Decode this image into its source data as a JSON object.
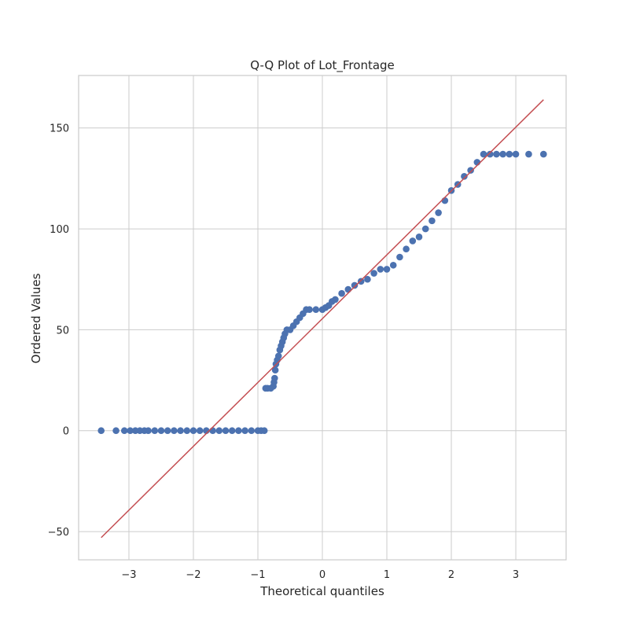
{
  "chart_data": {
    "type": "scatter",
    "title": "Q-Q Plot of Lot_Frontage",
    "xlabel": "Theoretical quantiles",
    "ylabel": "Ordered Values",
    "xlim": [
      -3.78,
      3.78
    ],
    "ylim": [
      -64,
      176
    ],
    "xticks": [
      -3,
      -2,
      -1,
      0,
      1,
      2,
      3
    ],
    "yticks": [
      -50,
      0,
      50,
      100,
      150
    ],
    "xtick_labels": [
      "−3",
      "−2",
      "−1",
      "0",
      "1",
      "2",
      "3"
    ],
    "ytick_labels": [
      "−50",
      "0",
      "50",
      "100",
      "150"
    ],
    "grid": true,
    "colors": {
      "points": "#4c72b0",
      "line": "#c44e52",
      "grid": "#cccccc",
      "frame": "#cccccc"
    },
    "series": [
      {
        "type": "scatter",
        "points": [
          [
            -3.43,
            0
          ],
          [
            -3.2,
            0
          ],
          [
            -3.07,
            0
          ],
          [
            -2.98,
            0
          ],
          [
            -2.9,
            0
          ],
          [
            -2.83,
            0
          ],
          [
            -2.76,
            0
          ],
          [
            -2.7,
            0
          ],
          [
            -2.6,
            0
          ],
          [
            -2.5,
            0
          ],
          [
            -2.4,
            0
          ],
          [
            -2.3,
            0
          ],
          [
            -2.2,
            0
          ],
          [
            -2.1,
            0
          ],
          [
            -2.0,
            0
          ],
          [
            -1.9,
            0
          ],
          [
            -1.8,
            0
          ],
          [
            -1.7,
            0
          ],
          [
            -1.6,
            0
          ],
          [
            -1.5,
            0
          ],
          [
            -1.4,
            0
          ],
          [
            -1.3,
            0
          ],
          [
            -1.2,
            0
          ],
          [
            -1.1,
            0
          ],
          [
            -1.0,
            0
          ],
          [
            -0.95,
            0
          ],
          [
            -0.9,
            0
          ],
          [
            -0.88,
            21
          ],
          [
            -0.85,
            21
          ],
          [
            -0.8,
            21
          ],
          [
            -0.76,
            22
          ],
          [
            -0.75,
            24
          ],
          [
            -0.74,
            26
          ],
          [
            -0.73,
            30
          ],
          [
            -0.72,
            33
          ],
          [
            -0.7,
            35
          ],
          [
            -0.68,
            37
          ],
          [
            -0.66,
            40
          ],
          [
            -0.64,
            42
          ],
          [
            -0.62,
            44
          ],
          [
            -0.6,
            46
          ],
          [
            -0.58,
            48
          ],
          [
            -0.55,
            50
          ],
          [
            -0.5,
            50
          ],
          [
            -0.45,
            52
          ],
          [
            -0.4,
            54
          ],
          [
            -0.35,
            56
          ],
          [
            -0.3,
            58
          ],
          [
            -0.25,
            60
          ],
          [
            -0.2,
            60
          ],
          [
            -0.1,
            60
          ],
          [
            0.0,
            60
          ],
          [
            0.05,
            61
          ],
          [
            0.1,
            62
          ],
          [
            0.15,
            64
          ],
          [
            0.2,
            65
          ],
          [
            0.3,
            68
          ],
          [
            0.4,
            70
          ],
          [
            0.5,
            72
          ],
          [
            0.6,
            74
          ],
          [
            0.7,
            75
          ],
          [
            0.8,
            78
          ],
          [
            0.9,
            80
          ],
          [
            1.0,
            80
          ],
          [
            1.1,
            82
          ],
          [
            1.2,
            86
          ],
          [
            1.3,
            90
          ],
          [
            1.4,
            94
          ],
          [
            1.5,
            96
          ],
          [
            1.6,
            100
          ],
          [
            1.7,
            104
          ],
          [
            1.8,
            108
          ],
          [
            1.9,
            114
          ],
          [
            2.0,
            119
          ],
          [
            2.1,
            122
          ],
          [
            2.2,
            126
          ],
          [
            2.3,
            129
          ],
          [
            2.4,
            133
          ],
          [
            2.5,
            137
          ],
          [
            2.6,
            137
          ],
          [
            2.7,
            137
          ],
          [
            2.8,
            137
          ],
          [
            2.9,
            137
          ],
          [
            3.0,
            137
          ],
          [
            3.2,
            137
          ],
          [
            3.43,
            137
          ]
        ]
      },
      {
        "type": "line",
        "points": [
          [
            -3.43,
            -53
          ],
          [
            3.43,
            164
          ]
        ]
      }
    ]
  }
}
